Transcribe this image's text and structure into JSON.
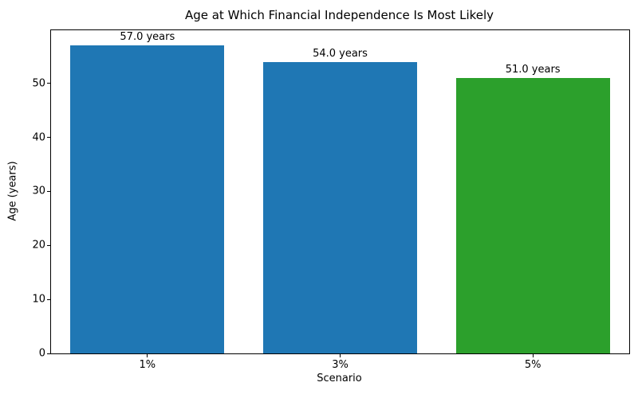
{
  "chart_data": {
    "type": "bar",
    "title": "Age at Which Financial Independence Is Most Likely",
    "xlabel": "Scenario",
    "ylabel": "Age (years)",
    "categories": [
      "1%",
      "3%",
      "5%"
    ],
    "values": [
      57.0,
      54.0,
      51.0
    ],
    "bar_labels": [
      "57.0 years",
      "54.0 years",
      "51.0 years"
    ],
    "bar_colors": [
      "#1f77b4",
      "#1f77b4",
      "#2ca02c"
    ],
    "ylim": [
      0,
      59.85
    ],
    "yticks": [
      0,
      10,
      20,
      30,
      40,
      50
    ],
    "bar_width_fraction": 0.8,
    "grid": false,
    "background": "#ffffff",
    "spine_color": "#000000"
  }
}
